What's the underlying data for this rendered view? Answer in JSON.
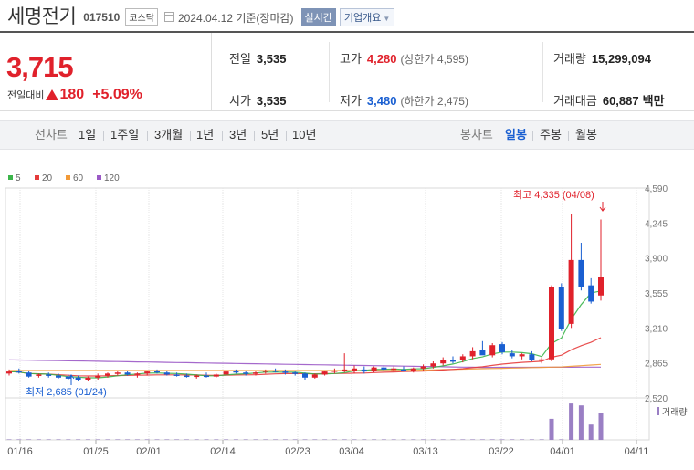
{
  "header": {
    "stock_name": "세명전기",
    "stock_code": "017510",
    "market": "코스닥",
    "date_text": "2024.04.12  기준(장마감)",
    "live_label": "실시간",
    "info_label": "기업개요"
  },
  "summary": {
    "price": "3,715",
    "change_label": "전일대비",
    "change_amount": "180",
    "change_percent": "+5.09%",
    "prev_close_label": "전일",
    "prev_close": "3,535",
    "open_label": "시가",
    "open": "3,535",
    "high_label": "고가",
    "high": "4,280",
    "upper_limit": "(상한가 4,595)",
    "low_label": "저가",
    "low": "3,480",
    "lower_limit": "(하한가 2,475)",
    "volume_label": "거래량",
    "volume": "15,299,094",
    "amount_label": "거래대금",
    "amount": "60,887",
    "amount_unit": "백만"
  },
  "toolbar": {
    "line_chart_label": "선차트",
    "periods": [
      "1일",
      "1주일",
      "3개월",
      "1년",
      "3년",
      "5년",
      "10년"
    ],
    "candle_label": "봉차트",
    "candle_types": [
      "일봉",
      "주봉",
      "월봉"
    ],
    "active_candle": "일봉"
  },
  "colors": {
    "up": "#e0212b",
    "down": "#1a5fd1",
    "ma5": "#3bb54a",
    "ma20": "#e53b3b",
    "ma60": "#f29a38",
    "ma120": "#9b59c6",
    "volume": "#9a7fc4"
  },
  "chart_data": {
    "type": "candlestick",
    "legend": [
      "5",
      "20",
      "60",
      "120"
    ],
    "y_ticks": [
      "4,590",
      "4,245",
      "3,900",
      "3,555",
      "3,210",
      "2,865",
      "2,520"
    ],
    "ylim": [
      2520,
      4590
    ],
    "x_ticks": [
      "01/16",
      "01/25",
      "02/01",
      "02/14",
      "02/23",
      "03/04",
      "03/13",
      "03/22",
      "04/01",
      "04/11"
    ],
    "high_annotation": "최고 4,335 (04/08)",
    "low_annotation": "최저 2,685 (01/24)",
    "volume_label": "거래량"
  }
}
